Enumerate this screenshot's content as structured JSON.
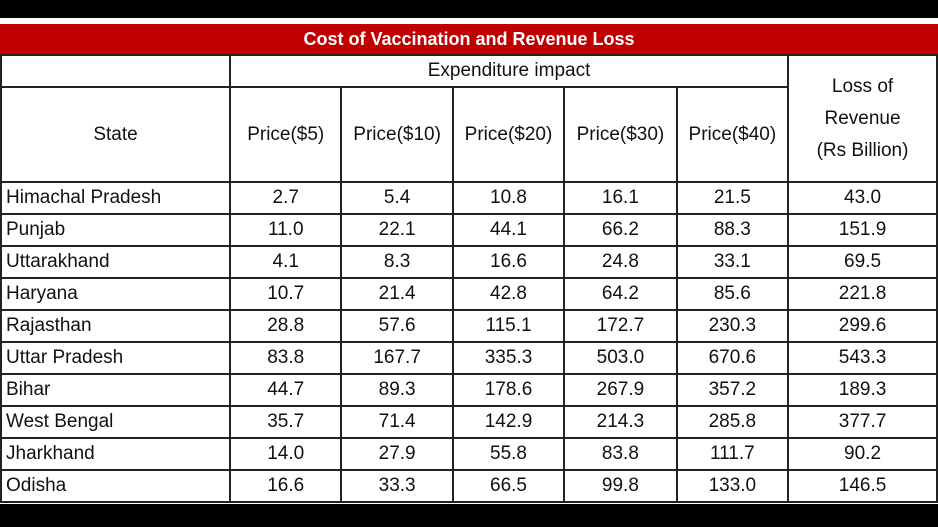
{
  "title": "Cost of Vaccination and Revenue Loss",
  "headers": {
    "state": "State",
    "group": "Expenditure impact",
    "prices": [
      "Price($5)",
      "Price($10)",
      "Price($20)",
      "Price($30)",
      "Price($40)"
    ],
    "loss_line1": "Loss of",
    "loss_line2": "Revenue",
    "loss_line3": "(Rs Billion)"
  },
  "colors": {
    "title_bar": "#c00000",
    "title_text": "#ffffff"
  },
  "rows": [
    {
      "state": "Himachal Pradesh",
      "p5": "2.7",
      "p10": "5.4",
      "p20": "10.8",
      "p30": "16.1",
      "p40": "21.5",
      "loss": "43.0"
    },
    {
      "state": "Punjab",
      "p5": "11.0",
      "p10": "22.1",
      "p20": "44.1",
      "p30": "66.2",
      "p40": "88.3",
      "loss": "151.9"
    },
    {
      "state": "Uttarakhand",
      "p5": "4.1",
      "p10": "8.3",
      "p20": "16.6",
      "p30": "24.8",
      "p40": "33.1",
      "loss": "69.5"
    },
    {
      "state": "Haryana",
      "p5": "10.7",
      "p10": "21.4",
      "p20": "42.8",
      "p30": "64.2",
      "p40": "85.6",
      "loss": "221.8"
    },
    {
      "state": "Rajasthan",
      "p5": "28.8",
      "p10": "57.6",
      "p20": "115.1",
      "p30": "172.7",
      "p40": "230.3",
      "loss": "299.6"
    },
    {
      "state": "Uttar Pradesh",
      "p5": "83.8",
      "p10": "167.7",
      "p20": "335.3",
      "p30": "503.0",
      "p40": "670.6",
      "loss": "543.3"
    },
    {
      "state": "Bihar",
      "p5": "44.7",
      "p10": "89.3",
      "p20": "178.6",
      "p30": "267.9",
      "p40": "357.2",
      "loss": "189.3"
    },
    {
      "state": "West Bengal",
      "p5": "35.7",
      "p10": "71.4",
      "p20": "142.9",
      "p30": "214.3",
      "p40": "285.8",
      "loss": "377.7"
    },
    {
      "state": "Jharkhand",
      "p5": "14.0",
      "p10": "27.9",
      "p20": "55.8",
      "p30": "83.8",
      "p40": "111.7",
      "loss": "90.2"
    },
    {
      "state": "Odisha",
      "p5": "16.6",
      "p10": "33.3",
      "p20": "66.5",
      "p30": "99.8",
      "p40": "133.0",
      "loss": "146.5"
    }
  ]
}
